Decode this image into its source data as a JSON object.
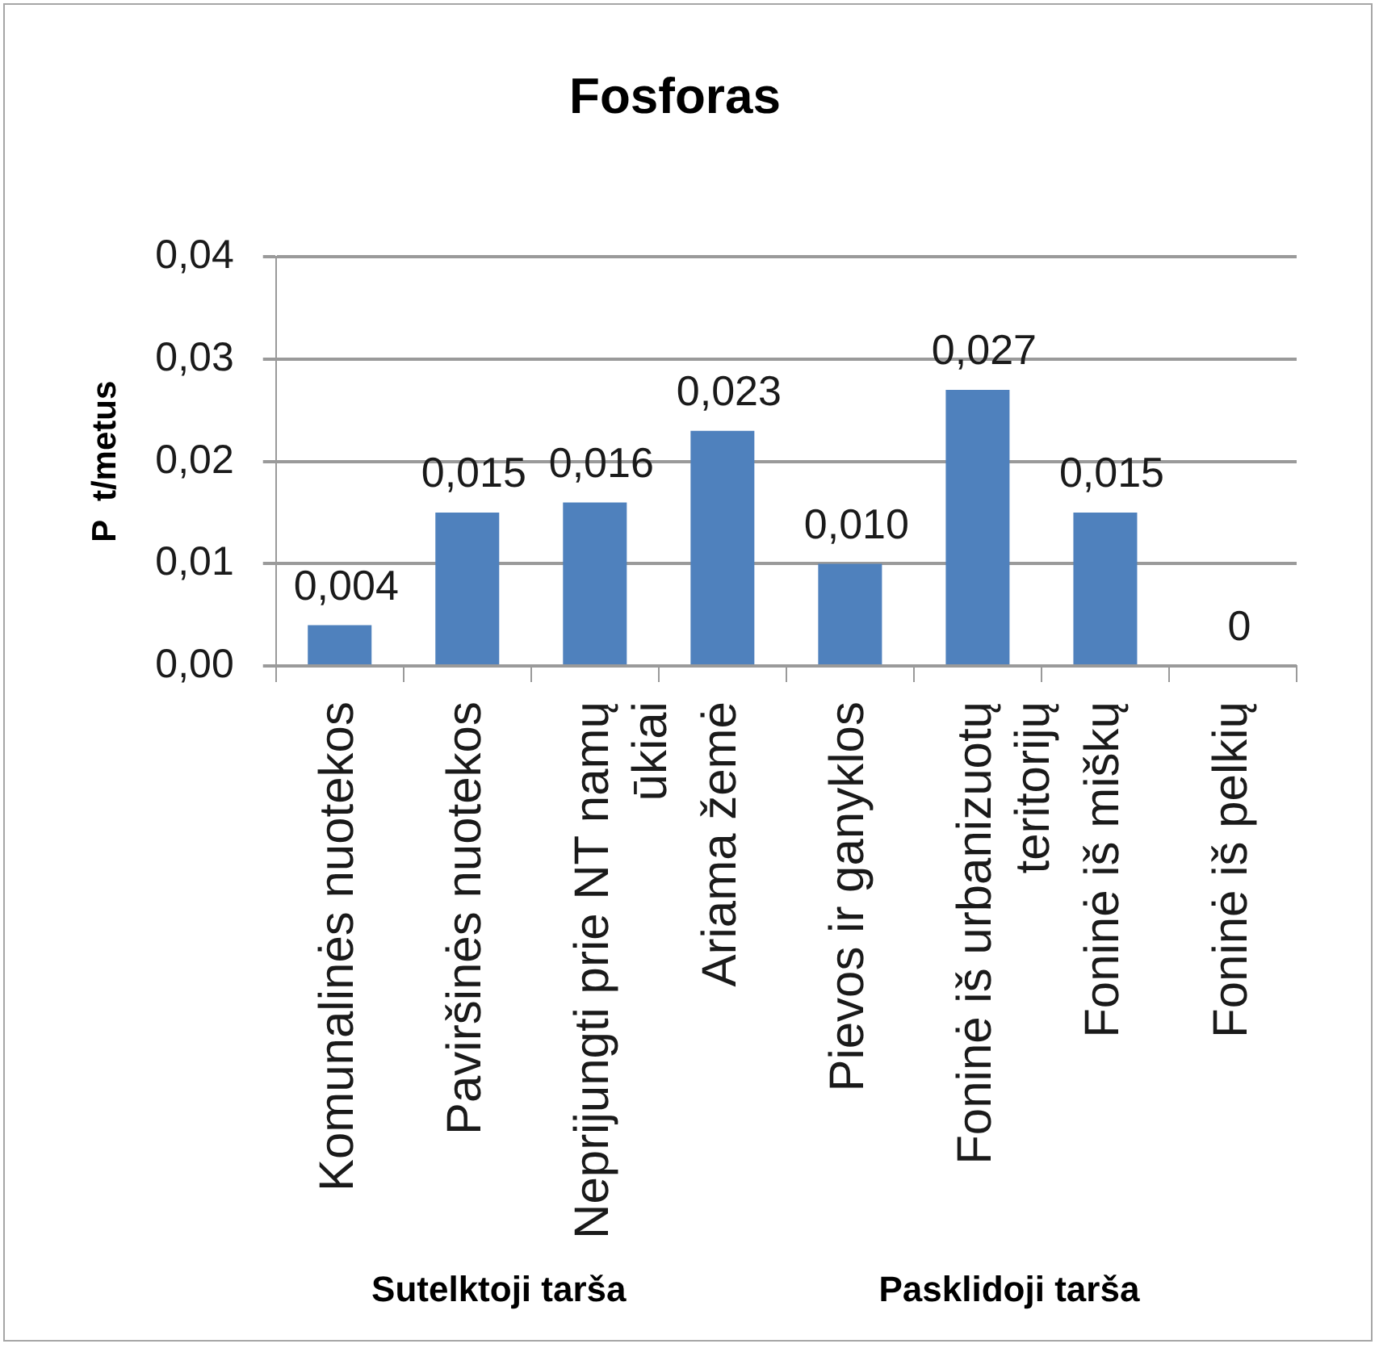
{
  "chart_data": {
    "type": "bar",
    "title": "Fosforas",
    "ylabel": "P  t/metus",
    "categories": [
      "Komunalinės nuotekos",
      "Paviršinės nuotekos",
      "Neprijungti prie NT namų ūkiai",
      "Ariama žemė",
      "Pievos ir ganyklos",
      "Foninė iš urbanizuotų teritorijų",
      "Foninė iš miškų",
      "Foninė iš pelkių"
    ],
    "values": [
      0.004,
      0.015,
      0.016,
      0.023,
      0.01,
      0.027,
      0.015,
      0
    ],
    "value_labels": [
      "0,004",
      "0,015",
      "0,016",
      "0,023",
      "0,010",
      "0,027",
      "0,015",
      "0"
    ],
    "color": "#4f81bd",
    "ylim": [
      0,
      0.04
    ],
    "yticks": [
      {
        "value": 0,
        "label": "0,00"
      },
      {
        "value": 0.01,
        "label": "0,01"
      },
      {
        "value": 0.02,
        "label": "0,02"
      },
      {
        "value": 0.03,
        "label": "0,03"
      },
      {
        "value": 0.04,
        "label": "0,04"
      }
    ],
    "grid": "y",
    "annotations": [
      "Sutelktoji tarša",
      "Pasklidoji tarša"
    ]
  }
}
